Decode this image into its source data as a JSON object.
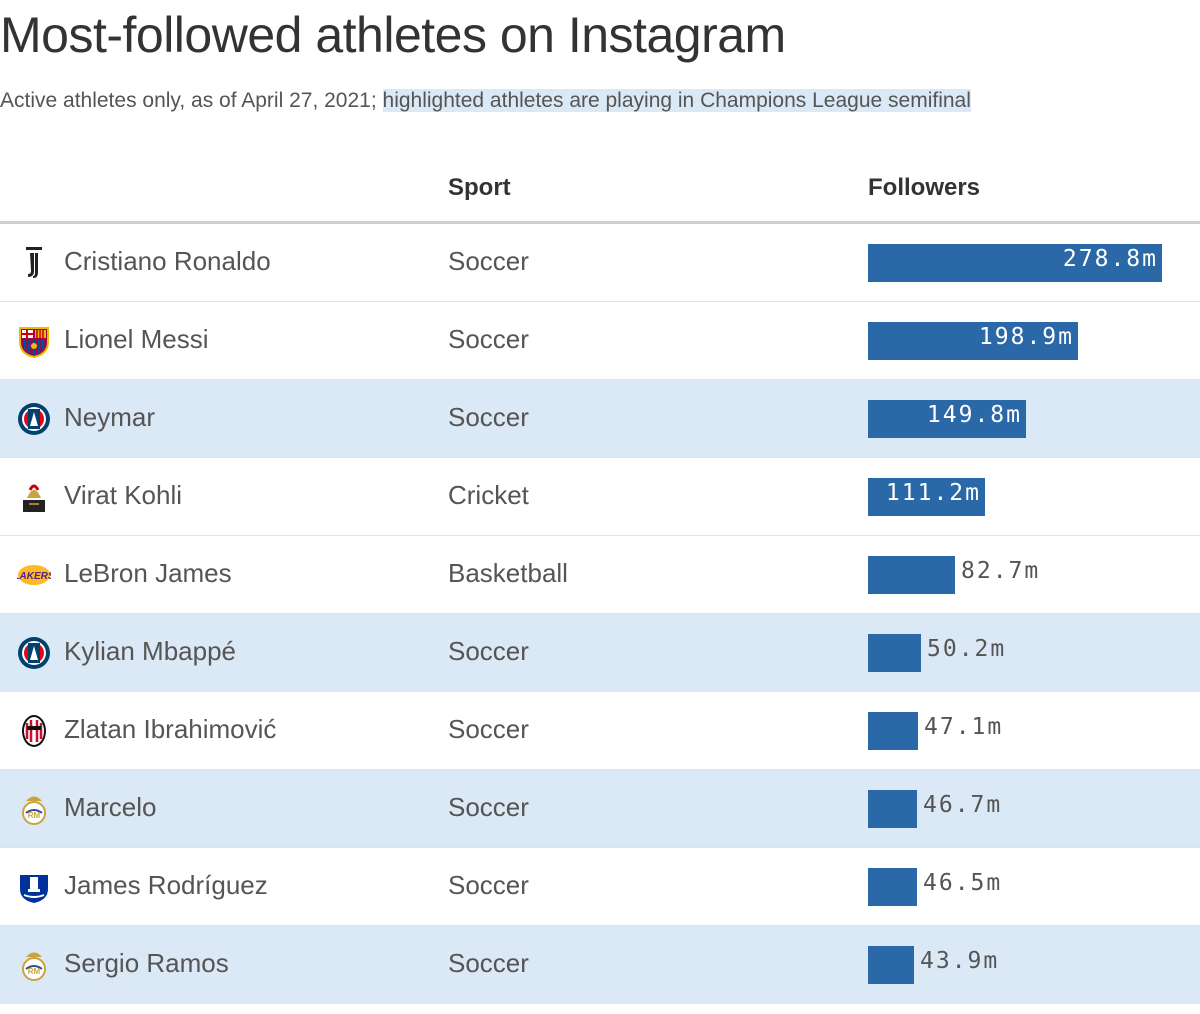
{
  "title": "Most-followed athletes on Instagram",
  "subtitle": {
    "plain": "Active athletes only, as of April 27, 2021; ",
    "highlighted": "highlighted athletes are playing in Champions League semifinal"
  },
  "columns": {
    "sport": "Sport",
    "followers": "Followers"
  },
  "colors": {
    "bar": "#2a68a8",
    "highlight_row": "#dbe8f5"
  },
  "chart_data": {
    "type": "table",
    "title": "Most-followed athletes on Instagram",
    "units": "millions of followers",
    "xlim": [
      0,
      300
    ],
    "rows": [
      {
        "name": "Cristiano Ronaldo",
        "sport": "Soccer",
        "followers": 278.8,
        "label": "278.8m",
        "highlighted": false,
        "logo": "juventus-logo-icon"
      },
      {
        "name": "Lionel Messi",
        "sport": "Soccer",
        "followers": 198.9,
        "label": "198.9m",
        "highlighted": false,
        "logo": "barcelona-logo-icon"
      },
      {
        "name": "Neymar",
        "sport": "Soccer",
        "followers": 149.8,
        "label": "149.8m",
        "highlighted": true,
        "logo": "psg-logo-icon"
      },
      {
        "name": "Virat Kohli",
        "sport": "Cricket",
        "followers": 111.2,
        "label": "111.2m",
        "highlighted": false,
        "logo": "rcb-logo-icon"
      },
      {
        "name": "LeBron James",
        "sport": "Basketball",
        "followers": 82.7,
        "label": "82.7m",
        "highlighted": false,
        "logo": "lakers-logo-icon"
      },
      {
        "name": "Kylian Mbappé",
        "sport": "Soccer",
        "followers": 50.2,
        "label": "50.2m",
        "highlighted": true,
        "logo": "psg-logo-icon"
      },
      {
        "name": "Zlatan Ibrahimović",
        "sport": "Soccer",
        "followers": 47.1,
        "label": "47.1m",
        "highlighted": false,
        "logo": "ac-milan-logo-icon"
      },
      {
        "name": "Marcelo",
        "sport": "Soccer",
        "followers": 46.7,
        "label": "46.7m",
        "highlighted": true,
        "logo": "real-madrid-logo-icon"
      },
      {
        "name": "James Rodríguez",
        "sport": "Soccer",
        "followers": 46.5,
        "label": "46.5m",
        "highlighted": false,
        "logo": "everton-logo-icon"
      },
      {
        "name": "Sergio Ramos",
        "sport": "Soccer",
        "followers": 43.9,
        "label": "43.9m",
        "highlighted": true,
        "logo": "real-madrid-logo-icon"
      }
    ]
  }
}
